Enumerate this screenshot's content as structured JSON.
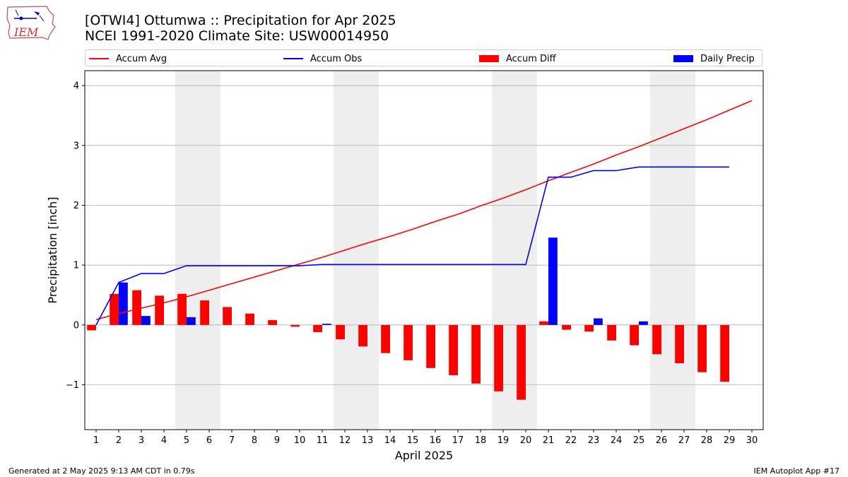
{
  "header": {
    "title_line1": "[OTWI4] Ottumwa :: Precipitation for Apr 2025",
    "title_line2": "NCEI 1991-2020 Climate Site: USW00014950",
    "logo_text": "IEM"
  },
  "legend": [
    {
      "label": "Accum Avg",
      "kind": "line",
      "color": "#ff0000"
    },
    {
      "label": "Accum Obs",
      "kind": "line",
      "color": "#0000ff"
    },
    {
      "label": "Accum Diff",
      "kind": "bar",
      "color": "#ff0000"
    },
    {
      "label": "Daily Precip",
      "kind": "bar",
      "color": "#0000ff"
    }
  ],
  "footer": {
    "left": "Generated at 2 May 2025 9:13 AM CDT in 0.79s",
    "right": "IEM Autoplot App #17"
  },
  "chart_data": {
    "type": "bar",
    "xlabel": "April 2025",
    "ylabel": "Precipitation [inch]",
    "ylim": [
      -1.75,
      4.25
    ],
    "xlim": [
      0.5,
      30.5
    ],
    "grid": "horizontal",
    "legend_position": "top",
    "x": [
      1,
      2,
      3,
      4,
      5,
      6,
      7,
      8,
      9,
      10,
      11,
      12,
      13,
      14,
      15,
      16,
      17,
      18,
      19,
      20,
      21,
      22,
      23,
      24,
      25,
      26,
      27,
      28,
      29,
      30
    ],
    "x_tick_labels": [
      "1",
      "2",
      "3",
      "4",
      "5",
      "6",
      "7",
      "8",
      "9",
      "10",
      "11",
      "12",
      "13",
      "14",
      "15",
      "16",
      "17",
      "18",
      "19",
      "20",
      "21",
      "22",
      "23",
      "24",
      "25",
      "26",
      "27",
      "28",
      "29",
      "30"
    ],
    "y_ticks": [
      -1,
      0,
      1,
      2,
      3,
      4
    ],
    "y_tick_labels": [
      "−1",
      "0",
      "1",
      "2",
      "3",
      "4"
    ],
    "weekend_shading": [
      [
        4.5,
        6.5
      ],
      [
        11.5,
        13.5
      ],
      [
        18.5,
        20.5
      ],
      [
        25.5,
        27.5
      ]
    ],
    "colors": {
      "avg": "#ff0000",
      "obs": "#0000ff",
      "diff": "#ff0000",
      "daily": "#0000ff",
      "shade": "#eeeeee",
      "grid": "#b0b0b0"
    },
    "series": [
      {
        "name": "Accum Avg",
        "kind": "line",
        "values": [
          0.09,
          0.19,
          0.28,
          0.37,
          0.47,
          0.58,
          0.69,
          0.8,
          0.91,
          1.02,
          1.13,
          1.25,
          1.37,
          1.48,
          1.6,
          1.73,
          1.85,
          1.99,
          2.12,
          2.26,
          2.41,
          2.55,
          2.69,
          2.84,
          2.98,
          3.13,
          3.28,
          3.43,
          3.59,
          3.75
        ]
      },
      {
        "name": "Accum Obs",
        "kind": "line",
        "values": [
          0.0,
          0.71,
          0.86,
          0.86,
          0.99,
          0.99,
          0.99,
          0.99,
          0.99,
          0.99,
          1.01,
          1.01,
          1.01,
          1.01,
          1.01,
          1.01,
          1.01,
          1.01,
          1.01,
          1.01,
          2.47,
          2.47,
          2.58,
          2.58,
          2.64,
          2.64,
          2.64,
          2.64,
          2.64,
          null
        ]
      },
      {
        "name": "Accum Diff",
        "kind": "bar",
        "values": [
          -0.09,
          0.52,
          0.58,
          0.49,
          0.52,
          0.41,
          0.3,
          0.19,
          0.08,
          -0.03,
          -0.12,
          -0.24,
          -0.36,
          -0.47,
          -0.59,
          -0.72,
          -0.84,
          -0.98,
          -1.11,
          -1.25,
          0.06,
          -0.08,
          -0.11,
          -0.26,
          -0.34,
          -0.49,
          -0.64,
          -0.79,
          -0.95,
          null
        ]
      },
      {
        "name": "Daily Precip",
        "kind": "bar",
        "values": [
          0.0,
          0.71,
          0.15,
          0.0,
          0.13,
          0.0,
          0.0,
          0.0,
          0.0,
          0.0,
          0.02,
          0.0,
          0.0,
          0.0,
          0.0,
          0.0,
          0.0,
          0.0,
          0.0,
          0.0,
          1.46,
          0.0,
          0.11,
          0.0,
          0.06,
          0.0,
          0.0,
          0.0,
          0.0,
          null
        ]
      }
    ]
  }
}
